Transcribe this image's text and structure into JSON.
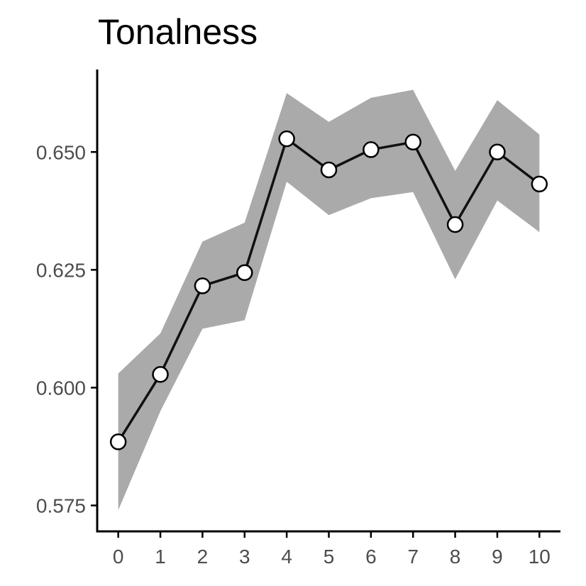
{
  "chart_data": {
    "type": "line",
    "title": "Tonalness",
    "xlabel": "",
    "ylabel": "",
    "x": [
      0,
      1,
      2,
      3,
      4,
      5,
      6,
      7,
      8,
      9,
      10
    ],
    "series": [
      {
        "values": [
          0.5885,
          0.6028,
          0.6216,
          0.6244,
          0.6528,
          0.6462,
          0.6505,
          0.6521,
          0.6346,
          0.65,
          0.6432
        ],
        "band_lower": [
          0.574,
          0.595,
          0.6125,
          0.6143,
          0.6437,
          0.6366,
          0.6402,
          0.6415,
          0.623,
          0.6397,
          0.633
        ],
        "band_upper": [
          0.603,
          0.6115,
          0.631,
          0.635,
          0.6625,
          0.6564,
          0.6615,
          0.6632,
          0.646,
          0.661,
          0.6537
        ]
      }
    ],
    "x_ticks": [
      "0",
      "1",
      "2",
      "3",
      "4",
      "5",
      "6",
      "7",
      "8",
      "9",
      "10"
    ],
    "y_ticks": [
      "0.575",
      "0.600",
      "0.625",
      "0.650"
    ],
    "y_tick_values": [
      0.575,
      0.6,
      0.625,
      0.65
    ],
    "xlim": [
      -0.5,
      10.5
    ],
    "ylim": [
      0.5695,
      0.6675
    ],
    "grid": false,
    "legend": "none",
    "colors": {
      "line": "#111111",
      "band": "#aaaaaa",
      "marker_fill": "#ffffff",
      "marker_stroke": "#000000",
      "axis": "#000000",
      "tick_text": "#4d4d4d",
      "title": "#000000"
    }
  }
}
